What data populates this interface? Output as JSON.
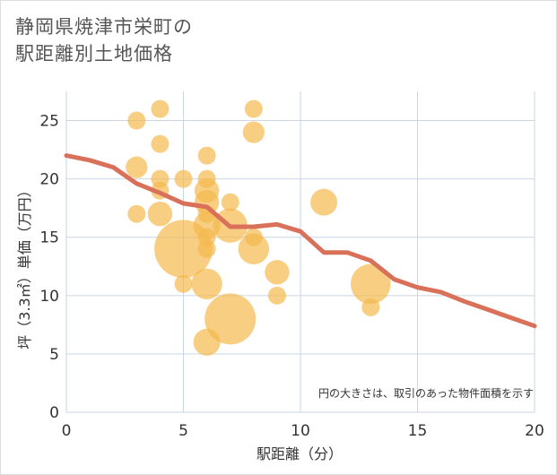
{
  "title_lines": [
    "静岡県焼津市栄町の",
    "駅距離別土地価格"
  ],
  "chart_data": {
    "type": "scatter",
    "title": "静岡県焼津市栄町の駅距離別土地価格",
    "xlabel": "駅距離（分）",
    "ylabel": "坪（3.3㎡）単価（万円）",
    "xlim": [
      0,
      20
    ],
    "ylim": [
      0,
      27.5
    ],
    "x_ticks": [
      0,
      5,
      10,
      15,
      20
    ],
    "y_ticks": [
      0,
      5,
      10,
      15,
      20,
      25
    ],
    "grid": true,
    "note": "円の大きさは、取引のあった物件面積を示す",
    "bubble_color": "#f5b94f",
    "line_color": "#d9705a",
    "points": [
      {
        "x": 3,
        "y": 25,
        "size": 1
      },
      {
        "x": 3,
        "y": 21,
        "size": 2
      },
      {
        "x": 3,
        "y": 17,
        "size": 1
      },
      {
        "x": 4,
        "y": 26,
        "size": 1
      },
      {
        "x": 4,
        "y": 23,
        "size": 1
      },
      {
        "x": 4,
        "y": 20,
        "size": 1
      },
      {
        "x": 4,
        "y": 19,
        "size": 1
      },
      {
        "x": 4,
        "y": 17,
        "size": 3
      },
      {
        "x": 5,
        "y": 20,
        "size": 1
      },
      {
        "x": 5,
        "y": 14,
        "size": 30
      },
      {
        "x": 5,
        "y": 11,
        "size": 1
      },
      {
        "x": 6,
        "y": 22,
        "size": 1
      },
      {
        "x": 6,
        "y": 20,
        "size": 1
      },
      {
        "x": 6,
        "y": 19,
        "size": 3
      },
      {
        "x": 6,
        "y": 18,
        "size": 3
      },
      {
        "x": 6,
        "y": 17,
        "size": 1
      },
      {
        "x": 6,
        "y": 16,
        "size": 4
      },
      {
        "x": 6,
        "y": 15,
        "size": 1
      },
      {
        "x": 6,
        "y": 14,
        "size": 1
      },
      {
        "x": 6,
        "y": 11,
        "size": 6
      },
      {
        "x": 6,
        "y": 6,
        "size": 4
      },
      {
        "x": 7,
        "y": 18,
        "size": 1
      },
      {
        "x": 7,
        "y": 16,
        "size": 8
      },
      {
        "x": 7,
        "y": 8,
        "size": 22
      },
      {
        "x": 8,
        "y": 26,
        "size": 1
      },
      {
        "x": 8,
        "y": 24,
        "size": 2
      },
      {
        "x": 8,
        "y": 15,
        "size": 1
      },
      {
        "x": 8,
        "y": 14,
        "size": 6
      },
      {
        "x": 9,
        "y": 12,
        "size": 3
      },
      {
        "x": 9,
        "y": 10,
        "size": 1
      },
      {
        "x": 11,
        "y": 18,
        "size": 4
      },
      {
        "x": 13,
        "y": 11,
        "size": 12
      },
      {
        "x": 13,
        "y": 9,
        "size": 1
      }
    ],
    "trend_line": {
      "x": [
        0,
        1,
        2,
        3,
        4,
        5,
        6,
        7,
        8,
        9,
        10,
        11,
        12,
        13,
        14,
        15,
        16,
        17,
        18,
        19,
        20
      ],
      "y": [
        22,
        21.6,
        21.0,
        19.6,
        18.8,
        17.9,
        17.6,
        15.9,
        15.9,
        16.1,
        15.5,
        13.7,
        13.7,
        13.0,
        11.4,
        10.7,
        10.3,
        9.5,
        8.8,
        8.1,
        7.4
      ]
    }
  }
}
